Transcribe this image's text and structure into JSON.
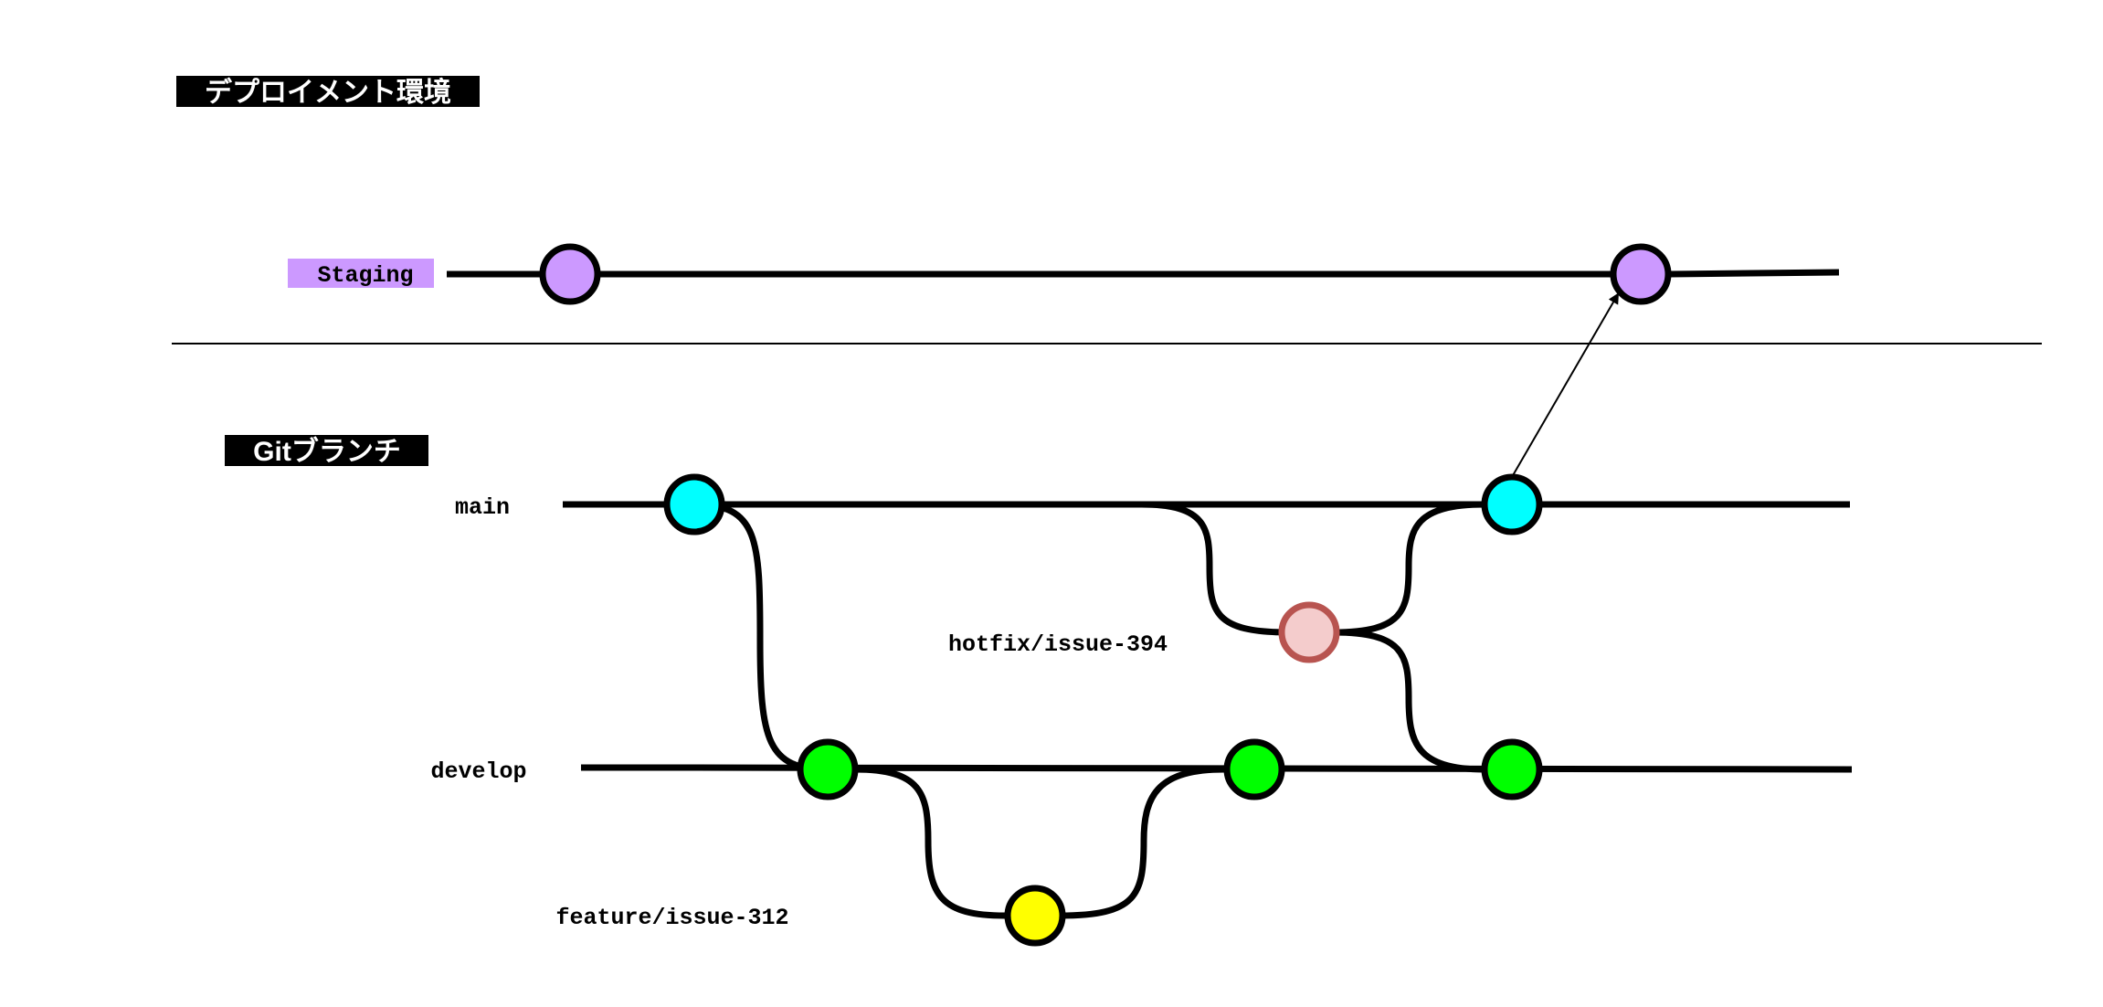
{
  "sections": {
    "deployment_title": "デプロイメント環境",
    "git_title": "Gitブランチ"
  },
  "environments": [
    {
      "id": "staging",
      "label": "Staging",
      "color": "#cc99ff"
    }
  ],
  "branches": [
    {
      "id": "main",
      "label": "main"
    },
    {
      "id": "hotfix",
      "label": "hotfix/issue-394"
    },
    {
      "id": "develop",
      "label": "develop"
    },
    {
      "id": "feature",
      "label": "feature/issue-312"
    }
  ],
  "colors": {
    "staging_commit": "#cc99ff",
    "main_commit": "#00ffff",
    "hotfix_commit_fill": "#f4cccc",
    "hotfix_commit_border": "#b85450",
    "develop_commit": "#00ff00",
    "feature_commit": "#ffff00",
    "label_background": "#000000",
    "env_label_background": "#cc99ff"
  }
}
